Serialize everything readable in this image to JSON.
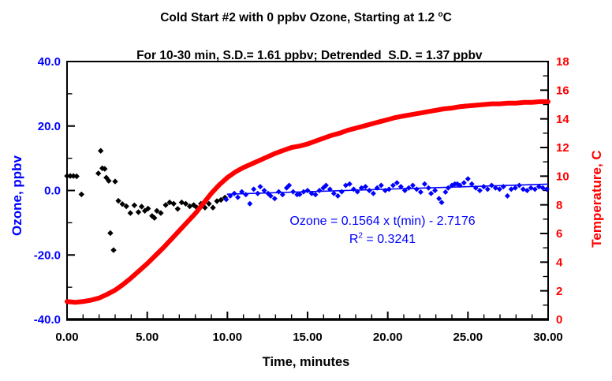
{
  "header": {
    "title_line1_prefix": "Cold Start #2 with 0 ppbv Ozone, Starting at 1.2 ",
    "title_line1_sup": "o",
    "title_line1_suffix": "C",
    "title_line2": "For 10-30 min, S.D.= 1.61 ppbv; Detrended  S.D. = 1.37 ppbv"
  },
  "annotation": {
    "equation": "Ozone = 0.1564 x t(min) - 2.7176",
    "r2_prefix": "R",
    "r2_sup": "2",
    "r2_suffix": " = 0.3241"
  },
  "chart_data": {
    "type": "scatter",
    "title": "Cold Start #2 with 0 ppbv Ozone, Starting at 1.2 oC / For 10-30 min, S.D.= 1.61 ppbv; Detrended S.D. = 1.37 ppbv",
    "xlabel": "Time, minutes",
    "ylabel_left": "Ozone, ppbv",
    "ylabel_right": "Temperature, C",
    "xlim": [
      0,
      30
    ],
    "ylim_left": [
      -40,
      40
    ],
    "ylim_right": [
      0,
      18
    ],
    "grid": false,
    "legend": "none",
    "x_ticks": [
      {
        "v": 0,
        "label": "0.00"
      },
      {
        "v": 5,
        "label": "5.00"
      },
      {
        "v": 10,
        "label": "10.00"
      },
      {
        "v": 15,
        "label": "15.00"
      },
      {
        "v": 20,
        "label": "20.00"
      },
      {
        "v": 25,
        "label": "25.00"
      },
      {
        "v": 30,
        "label": "30.00"
      }
    ],
    "x_minor_step": 1,
    "y_ticks_left": [
      {
        "v": 40,
        "label": "40.0"
      },
      {
        "v": 20,
        "label": "20.0"
      },
      {
        "v": 0,
        "label": "0.0"
      },
      {
        "v": -20,
        "label": "-20.0"
      },
      {
        "v": -40,
        "label": "-40.0"
      }
    ],
    "y_left_minor_step": 10,
    "y_ticks_right": [
      {
        "v": 18,
        "label": "18"
      },
      {
        "v": 16,
        "label": "16"
      },
      {
        "v": 14,
        "label": "14"
      },
      {
        "v": 12,
        "label": "12"
      },
      {
        "v": 10,
        "label": "10"
      },
      {
        "v": 8,
        "label": "8"
      },
      {
        "v": 6,
        "label": "6"
      },
      {
        "v": 4,
        "label": "4"
      },
      {
        "v": 2,
        "label": "2"
      },
      {
        "v": 0,
        "label": "0"
      }
    ],
    "y_right_minor_step": 1,
    "colors": {
      "ozone_0_10": "#000000",
      "ozone_10_30": "#0000ff",
      "temperature": "#ff0000",
      "trend_line": "#0000ff",
      "frame": "#000000"
    },
    "fit": {
      "slope": 0.1564,
      "intercept": -2.7176,
      "r2": 0.3241,
      "fit_range_min": [
        10,
        30
      ]
    },
    "series": [
      {
        "name": "ozone-0-10min",
        "axis": "left",
        "style": "diamond",
        "color": "#000000",
        "marker_half": 3.7,
        "points": [
          [
            0,
            4.5
          ],
          [
            0.2,
            4.5
          ],
          [
            0.4,
            4.5
          ],
          [
            0.6,
            4.4
          ],
          [
            0.9,
            -1.2
          ],
          [
            1.95,
            5.3
          ],
          [
            2.1,
            12.3
          ],
          [
            2.2,
            6.9
          ],
          [
            2.35,
            6.7
          ],
          [
            2.45,
            4.0
          ],
          [
            2.6,
            3.0
          ],
          [
            2.7,
            -13.2
          ],
          [
            2.9,
            -18.5
          ],
          [
            3.0,
            2.8
          ],
          [
            3.2,
            -3.2
          ],
          [
            3.45,
            -4.2
          ],
          [
            3.7,
            -4.9
          ],
          [
            3.95,
            -7.0
          ],
          [
            4.2,
            -4.6
          ],
          [
            4.45,
            -6.7
          ],
          [
            4.65,
            -5.0
          ],
          [
            4.85,
            -6.3
          ],
          [
            5.05,
            -5.6
          ],
          [
            5.3,
            -7.9
          ],
          [
            5.45,
            -8.5
          ],
          [
            5.6,
            -6.3
          ],
          [
            5.85,
            -7.0
          ],
          [
            6.15,
            -4.5
          ],
          [
            6.4,
            -3.7
          ],
          [
            6.65,
            -4.1
          ],
          [
            6.9,
            -5.7
          ],
          [
            7.15,
            -3.7
          ],
          [
            7.4,
            -4.1
          ],
          [
            7.65,
            -4.9
          ],
          [
            7.9,
            -4.5
          ],
          [
            8.1,
            -5.3
          ],
          [
            8.35,
            -4.1
          ],
          [
            8.6,
            -5.3
          ],
          [
            8.85,
            -4.1
          ],
          [
            9.1,
            -5.3
          ],
          [
            9.35,
            -3.3
          ],
          [
            9.6,
            -2.9
          ],
          [
            9.85,
            -2.2
          ]
        ]
      },
      {
        "name": "temperature",
        "axis": "right",
        "style": "line",
        "color": "#ff0000",
        "width": 6,
        "points": [
          [
            0,
            1.25
          ],
          [
            0.5,
            1.2
          ],
          [
            1,
            1.25
          ],
          [
            1.5,
            1.35
          ],
          [
            2,
            1.5
          ],
          [
            2.5,
            1.75
          ],
          [
            3,
            2.05
          ],
          [
            3.5,
            2.45
          ],
          [
            4,
            2.9
          ],
          [
            4.5,
            3.4
          ],
          [
            5,
            3.9
          ],
          [
            5.5,
            4.45
          ],
          [
            6,
            5.0
          ],
          [
            6.5,
            5.6
          ],
          [
            7,
            6.2
          ],
          [
            7.5,
            6.8
          ],
          [
            8,
            7.4
          ],
          [
            8.5,
            8.1
          ],
          [
            9,
            8.8
          ],
          [
            9.5,
            9.4
          ],
          [
            10,
            9.9
          ],
          [
            10.5,
            10.3
          ],
          [
            11,
            10.6
          ],
          [
            11.5,
            10.85
          ],
          [
            12,
            11.1
          ],
          [
            12.5,
            11.35
          ],
          [
            13,
            11.6
          ],
          [
            13.5,
            11.8
          ],
          [
            14,
            12.0
          ],
          [
            14.5,
            12.1
          ],
          [
            15,
            12.25
          ],
          [
            15.5,
            12.45
          ],
          [
            16,
            12.65
          ],
          [
            16.5,
            12.85
          ],
          [
            17,
            13.0
          ],
          [
            17.5,
            13.2
          ],
          [
            18,
            13.35
          ],
          [
            18.5,
            13.5
          ],
          [
            19,
            13.65
          ],
          [
            19.5,
            13.8
          ],
          [
            20,
            13.95
          ],
          [
            20.5,
            14.1
          ],
          [
            21,
            14.2
          ],
          [
            21.5,
            14.3
          ],
          [
            22,
            14.4
          ],
          [
            22.5,
            14.5
          ],
          [
            23,
            14.6
          ],
          [
            23.5,
            14.7
          ],
          [
            24,
            14.75
          ],
          [
            24.5,
            14.85
          ],
          [
            25,
            14.9
          ],
          [
            25.5,
            14.95
          ],
          [
            26,
            15.0
          ],
          [
            26.5,
            15.05
          ],
          [
            27,
            15.05
          ],
          [
            27.5,
            15.1
          ],
          [
            28,
            15.1
          ],
          [
            28.5,
            15.15
          ],
          [
            29,
            15.15
          ],
          [
            29.5,
            15.2
          ],
          [
            30,
            15.2
          ]
        ]
      },
      {
        "name": "trend-line",
        "axis": "left",
        "style": "line",
        "color": "#0000ff",
        "width": 1.6,
        "points": [
          [
            10,
            -1.1534
          ],
          [
            30,
            1.9744
          ]
        ]
      },
      {
        "name": "ozone-10-30min",
        "axis": "left",
        "style": "diamond",
        "color": "#0000ff",
        "marker_half": 3.5,
        "points": [
          [
            9.93,
            -2.8
          ],
          [
            10.18,
            -1.7
          ],
          [
            10.43,
            -0.9
          ],
          [
            10.65,
            -2.1
          ],
          [
            10.9,
            -0.4
          ],
          [
            11.15,
            -1.3
          ],
          [
            11.4,
            -4.1
          ],
          [
            11.64,
            0.4
          ],
          [
            11.89,
            -0.9
          ],
          [
            12.05,
            1.2
          ],
          [
            12.3,
            0.0
          ],
          [
            12.54,
            -0.9
          ],
          [
            12.7,
            -1.7
          ],
          [
            12.95,
            -2.5
          ],
          [
            13.2,
            -0.4
          ],
          [
            13.44,
            -1.3
          ],
          [
            13.69,
            0.8
          ],
          [
            13.85,
            1.6
          ],
          [
            14.1,
            -0.4
          ],
          [
            14.35,
            -1.3
          ],
          [
            14.51,
            -1.2
          ],
          [
            14.75,
            -0.4
          ],
          [
            15.0,
            0.0
          ],
          [
            15.25,
            -0.9
          ],
          [
            15.49,
            -1.3
          ],
          [
            15.74,
            0.0
          ],
          [
            15.98,
            0.8
          ],
          [
            16.15,
            1.6
          ],
          [
            16.39,
            0.4
          ],
          [
            16.64,
            -0.9
          ],
          [
            16.89,
            -1.7
          ],
          [
            17.13,
            -0.4
          ],
          [
            17.38,
            1.6
          ],
          [
            17.62,
            2.0
          ],
          [
            17.87,
            0.4
          ],
          [
            18.11,
            -0.4
          ],
          [
            18.36,
            0.8
          ],
          [
            18.61,
            1.2
          ],
          [
            18.85,
            0.0
          ],
          [
            19.1,
            -0.9
          ],
          [
            19.34,
            0.8
          ],
          [
            19.59,
            1.6
          ],
          [
            19.84,
            0.0
          ],
          [
            20.08,
            0.4
          ],
          [
            20.33,
            1.6
          ],
          [
            20.57,
            2.4
          ],
          [
            20.82,
            1.2
          ],
          [
            21.07,
            0.0
          ],
          [
            21.31,
            0.8
          ],
          [
            21.56,
            1.6
          ],
          [
            21.8,
            0.4
          ],
          [
            22.05,
            -0.5
          ],
          [
            22.3,
            2.0
          ],
          [
            22.54,
            0.8
          ],
          [
            22.7,
            -0.9
          ],
          [
            22.95,
            0.0
          ],
          [
            23.2,
            -2.5
          ],
          [
            23.36,
            -3.7
          ],
          [
            23.6,
            -0.5
          ],
          [
            23.77,
            0.8
          ],
          [
            24.0,
            1.6
          ],
          [
            24.18,
            2.0
          ],
          [
            24.34,
            2.0
          ],
          [
            24.5,
            1.6
          ],
          [
            24.75,
            2.4
          ],
          [
            25.0,
            3.6
          ],
          [
            25.24,
            2.0
          ],
          [
            25.49,
            0.8
          ],
          [
            25.74,
            0.0
          ],
          [
            25.98,
            1.2
          ],
          [
            26.23,
            0.4
          ],
          [
            26.48,
            1.6
          ],
          [
            26.72,
            0.8
          ],
          [
            26.97,
            0.4
          ],
          [
            27.21,
            1.2
          ],
          [
            27.46,
            -1.7
          ],
          [
            27.7,
            0.4
          ],
          [
            27.95,
            0.8
          ],
          [
            28.2,
            1.6
          ],
          [
            28.44,
            0.4
          ],
          [
            28.69,
            0.0
          ],
          [
            28.93,
            0.8
          ],
          [
            29.18,
            0.4
          ],
          [
            29.43,
            1.2
          ],
          [
            29.67,
            0.8
          ],
          [
            29.92,
            0.4
          ]
        ]
      }
    ]
  }
}
